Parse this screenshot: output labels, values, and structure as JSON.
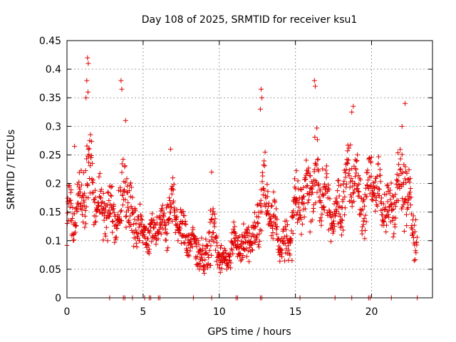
{
  "chart_data": {
    "type": "scatter",
    "title": "Day 108 of 2025, SRMTID for receiver ksu1",
    "xlabel": "GPS time / hours",
    "ylabel": "SRMTID / TECUs",
    "xlim": [
      0,
      24
    ],
    "ylim": [
      0,
      0.45
    ],
    "x_ticks": [
      "0",
      "5",
      "10",
      "15",
      "20"
    ],
    "x_tick_values": [
      0,
      5,
      10,
      15,
      20
    ],
    "y_ticks": [
      "0",
      "0.05",
      "0.1",
      "0.15",
      "0.2",
      "0.25",
      "0.3",
      "0.35",
      "0.4",
      "0.45"
    ],
    "y_tick_values": [
      0,
      0.05,
      0.1,
      0.15,
      0.2,
      0.25,
      0.3,
      0.35,
      0.4,
      0.45
    ],
    "grid": true,
    "marker": "plus",
    "color": "#e00000",
    "series": [
      {
        "name": "SRMTID",
        "trend": {
          "x": [
            0,
            0.5,
            1,
            1.4,
            2,
            2.5,
            3,
            3.5,
            3.8,
            4.2,
            5,
            5.5,
            6,
            6.5,
            7,
            7.5,
            8,
            8.5,
            9,
            9.4,
            10,
            10.5,
            11,
            11.5,
            12,
            12.5,
            12.8,
            13.2,
            13.6,
            14,
            14.5,
            15,
            15.5,
            16,
            16.5,
            17,
            17.5,
            18,
            18.5,
            19,
            19.5,
            20,
            20.5,
            21,
            21.5,
            22,
            22.5,
            23
          ],
          "y": [
            0.14,
            0.15,
            0.17,
            0.23,
            0.16,
            0.15,
            0.14,
            0.15,
            0.2,
            0.14,
            0.12,
            0.11,
            0.12,
            0.13,
            0.16,
            0.12,
            0.1,
            0.09,
            0.06,
            0.12,
            0.07,
            0.06,
            0.1,
            0.09,
            0.1,
            0.12,
            0.2,
            0.16,
            0.14,
            0.1,
            0.09,
            0.16,
            0.18,
            0.2,
            0.2,
            0.18,
            0.13,
            0.17,
            0.22,
            0.2,
            0.15,
            0.21,
            0.19,
            0.15,
            0.17,
            0.21,
            0.17,
            0.1
          ],
          "spread": [
            0.05,
            0.05,
            0.05,
            0.09,
            0.05,
            0.05,
            0.05,
            0.05,
            0.09,
            0.05,
            0.04,
            0.04,
            0.04,
            0.05,
            0.05,
            0.04,
            0.04,
            0.035,
            0.03,
            0.06,
            0.03,
            0.025,
            0.03,
            0.035,
            0.04,
            0.05,
            0.09,
            0.05,
            0.05,
            0.04,
            0.045,
            0.06,
            0.06,
            0.07,
            0.08,
            0.06,
            0.05,
            0.06,
            0.06,
            0.06,
            0.05,
            0.06,
            0.06,
            0.05,
            0.06,
            0.07,
            0.06,
            0.05
          ]
        },
        "highlights": [
          {
            "x": 1.35,
            "y": 0.42
          },
          {
            "x": 1.4,
            "y": 0.41
          },
          {
            "x": 1.3,
            "y": 0.38
          },
          {
            "x": 1.38,
            "y": 0.36
          },
          {
            "x": 1.25,
            "y": 0.35
          },
          {
            "x": 3.55,
            "y": 0.38
          },
          {
            "x": 3.6,
            "y": 0.365
          },
          {
            "x": 3.85,
            "y": 0.31
          },
          {
            "x": 12.75,
            "y": 0.365
          },
          {
            "x": 12.8,
            "y": 0.35
          },
          {
            "x": 12.7,
            "y": 0.33
          },
          {
            "x": 16.25,
            "y": 0.38
          },
          {
            "x": 16.3,
            "y": 0.37
          },
          {
            "x": 18.8,
            "y": 0.335
          },
          {
            "x": 18.7,
            "y": 0.325
          },
          {
            "x": 22.2,
            "y": 0.34
          },
          {
            "x": 22.0,
            "y": 0.3
          },
          {
            "x": 9.5,
            "y": 0.22
          },
          {
            "x": 6.8,
            "y": 0.26
          },
          {
            "x": 0.5,
            "y": 0.265
          }
        ],
        "zero_x": [
          2.8,
          3.7,
          3.8,
          4.3,
          5.1,
          5.4,
          5.5,
          6.0,
          6.1,
          8.3,
          9.5,
          11.1,
          11.2,
          12.7,
          12.8,
          15.3,
          17.6,
          18.7,
          19.8,
          19.9,
          21.3,
          23.0
        ]
      }
    ]
  }
}
